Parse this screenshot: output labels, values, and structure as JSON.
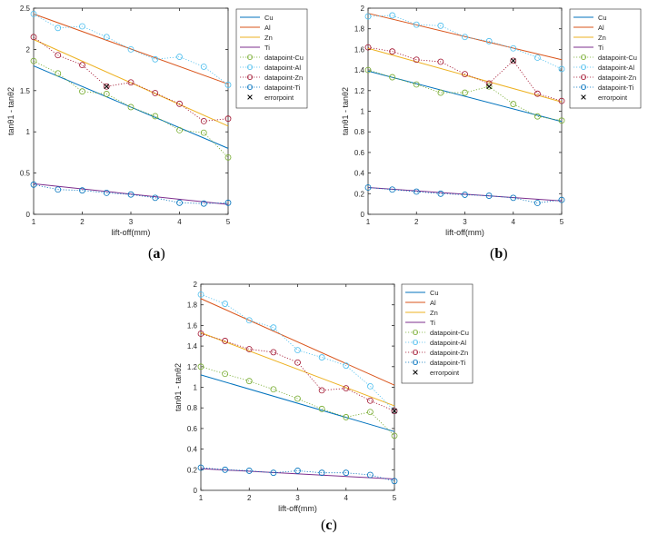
{
  "figure": {
    "captions": [
      {
        "open": "(",
        "letter": "a",
        "close": ")"
      },
      {
        "open": "(",
        "letter": "b",
        "close": ")"
      },
      {
        "open": "(",
        "letter": "c",
        "close": ")"
      }
    ]
  },
  "colors": {
    "Cu": "#0072BD",
    "Al": "#D95319",
    "Zn": "#EDB120",
    "Ti": "#7E2F8E",
    "datapoint-Cu": "#77AC30",
    "datapoint-Al": "#4DBEEE",
    "datapoint-Zn": "#A2142F",
    "datapoint-Ti": "#0072BD",
    "errorpoint": "#000000"
  },
  "chart_data": [
    {
      "type": "line",
      "xlabel": "lift-off(mm)",
      "ylabel": "tanθ1 - tanθ2",
      "xlim": [
        1,
        5
      ],
      "ylim": [
        0,
        2.5
      ],
      "xticks": [
        1,
        2,
        3,
        4,
        5
      ],
      "yticks": [
        0,
        0.5,
        1,
        1.5,
        2,
        2.5
      ],
      "grid": false,
      "legend": "outside-right",
      "legend_entries": [
        "Cu",
        "Al",
        "Zn",
        "Ti",
        "datapoint-Cu",
        "datapoint-Al",
        "datapoint-Zn",
        "datapoint-Ti",
        "errorpoint"
      ],
      "fits": [
        {
          "name": "Cu",
          "x": [
            1,
            5
          ],
          "y": [
            1.8,
            0.8
          ]
        },
        {
          "name": "Al",
          "x": [
            1,
            5
          ],
          "y": [
            2.43,
            1.58
          ]
        },
        {
          "name": "Zn",
          "x": [
            1,
            5
          ],
          "y": [
            2.12,
            1.07
          ]
        },
        {
          "name": "Ti",
          "x": [
            1,
            5
          ],
          "y": [
            0.37,
            0.12
          ]
        }
      ],
      "points": [
        {
          "name": "datapoint-Cu",
          "x": [
            1,
            1.5,
            2,
            2.5,
            3,
            3.5,
            4,
            4.5,
            5
          ],
          "y": [
            1.86,
            1.71,
            1.49,
            1.46,
            1.3,
            1.19,
            1.02,
            0.99,
            0.69
          ]
        },
        {
          "name": "datapoint-Al",
          "x": [
            1,
            1.5,
            2,
            2.5,
            3,
            3.5,
            4,
            4.5,
            5
          ],
          "y": [
            2.43,
            2.26,
            2.28,
            2.15,
            2.0,
            1.88,
            1.91,
            1.79,
            1.57
          ]
        },
        {
          "name": "datapoint-Zn",
          "x": [
            1,
            1.5,
            2,
            2.5,
            3,
            3.5,
            4,
            4.5,
            5
          ],
          "y": [
            2.15,
            1.93,
            1.81,
            1.55,
            1.6,
            1.47,
            1.34,
            1.13,
            1.16
          ]
        },
        {
          "name": "datapoint-Ti",
          "x": [
            1,
            1.5,
            2,
            2.5,
            3,
            3.5,
            4,
            4.5,
            5
          ],
          "y": [
            0.36,
            0.3,
            0.29,
            0.26,
            0.24,
            0.2,
            0.14,
            0.13,
            0.14
          ]
        }
      ],
      "errorpoints": [
        {
          "x": 2.5,
          "y": 1.55
        }
      ]
    },
    {
      "type": "line",
      "xlabel": "lift-off(mm)",
      "ylabel": "tanθ1 - tanθ2",
      "xlim": [
        1,
        5
      ],
      "ylim": [
        0,
        2
      ],
      "xticks": [
        1,
        2,
        3,
        4,
        5
      ],
      "yticks": [
        0,
        0.2,
        0.4,
        0.6,
        0.8,
        1,
        1.2,
        1.4,
        1.6,
        1.8,
        2
      ],
      "grid": false,
      "legend": "outside-right",
      "legend_entries": [
        "Cu",
        "Al",
        "Zn",
        "Ti",
        "datapoint-Cu",
        "datapoint-Al",
        "datapoint-Zn",
        "datapoint-Ti",
        "errorpoint"
      ],
      "fits": [
        {
          "name": "Cu",
          "x": [
            1,
            5
          ],
          "y": [
            1.39,
            0.9
          ]
        },
        {
          "name": "Al",
          "x": [
            1,
            5
          ],
          "y": [
            1.95,
            1.5
          ]
        },
        {
          "name": "Zn",
          "x": [
            1,
            5
          ],
          "y": [
            1.61,
            1.09
          ]
        },
        {
          "name": "Ti",
          "x": [
            1,
            5
          ],
          "y": [
            0.26,
            0.13
          ]
        }
      ],
      "points": [
        {
          "name": "datapoint-Cu",
          "x": [
            1,
            1.5,
            2,
            2.5,
            3,
            3.5,
            4,
            4.5,
            5
          ],
          "y": [
            1.4,
            1.33,
            1.26,
            1.18,
            1.18,
            1.24,
            1.07,
            0.95,
            0.91
          ]
        },
        {
          "name": "datapoint-Al",
          "x": [
            1,
            1.5,
            2,
            2.5,
            3,
            3.5,
            4,
            4.5,
            5
          ],
          "y": [
            1.92,
            1.93,
            1.84,
            1.83,
            1.72,
            1.68,
            1.61,
            1.52,
            1.41
          ]
        },
        {
          "name": "datapoint-Zn",
          "x": [
            1,
            1.5,
            2,
            2.5,
            3,
            3.5,
            4,
            4.5,
            5
          ],
          "y": [
            1.62,
            1.58,
            1.5,
            1.48,
            1.36,
            1.27,
            1.49,
            1.17,
            1.1
          ]
        },
        {
          "name": "datapoint-Ti",
          "x": [
            1,
            1.5,
            2,
            2.5,
            3,
            3.5,
            4,
            4.5,
            5
          ],
          "y": [
            0.26,
            0.24,
            0.22,
            0.2,
            0.19,
            0.18,
            0.16,
            0.11,
            0.14
          ]
        }
      ],
      "errorpoints": [
        {
          "x": 3.5,
          "y": 1.24
        },
        {
          "x": 4,
          "y": 1.49
        }
      ]
    },
    {
      "type": "line",
      "xlabel": "lift-off(mm)",
      "ylabel": "tanθ1 - tanθ2",
      "xlim": [
        1,
        5
      ],
      "ylim": [
        0,
        2
      ],
      "xticks": [
        1,
        2,
        3,
        4,
        5
      ],
      "yticks": [
        0,
        0.2,
        0.4,
        0.6,
        0.8,
        1,
        1.2,
        1.4,
        1.6,
        1.8,
        2
      ],
      "grid": false,
      "legend": "outside-right",
      "legend_entries": [
        "Cu",
        "Al",
        "Zn",
        "Ti",
        "datapoint-Cu",
        "datapoint-Al",
        "datapoint-Zn",
        "datapoint-Ti",
        "errorpoint"
      ],
      "fits": [
        {
          "name": "Cu",
          "x": [
            1,
            5
          ],
          "y": [
            1.12,
            0.57
          ]
        },
        {
          "name": "Al",
          "x": [
            1,
            5
          ],
          "y": [
            1.86,
            1.02
          ]
        },
        {
          "name": "Zn",
          "x": [
            1,
            5
          ],
          "y": [
            1.53,
            0.82
          ]
        },
        {
          "name": "Ti",
          "x": [
            1,
            5
          ],
          "y": [
            0.21,
            0.11
          ]
        }
      ],
      "points": [
        {
          "name": "datapoint-Cu",
          "x": [
            1,
            1.5,
            2,
            2.5,
            3,
            3.5,
            4,
            4.5,
            5
          ],
          "y": [
            1.2,
            1.13,
            1.06,
            0.98,
            0.89,
            0.79,
            0.71,
            0.76,
            0.53
          ]
        },
        {
          "name": "datapoint-Al",
          "x": [
            1,
            1.5,
            2,
            2.5,
            3,
            3.5,
            4,
            4.5,
            5
          ],
          "y": [
            1.9,
            1.81,
            1.65,
            1.58,
            1.36,
            1.29,
            1.21,
            1.01,
            0.77
          ]
        },
        {
          "name": "datapoint-Zn",
          "x": [
            1,
            1.5,
            2,
            2.5,
            3,
            3.5,
            4,
            4.5,
            5
          ],
          "y": [
            1.52,
            1.45,
            1.37,
            1.34,
            1.24,
            0.97,
            0.99,
            0.87,
            0.77
          ]
        },
        {
          "name": "datapoint-Ti",
          "x": [
            1,
            1.5,
            2,
            2.5,
            3,
            3.5,
            4,
            4.5,
            5
          ],
          "y": [
            0.22,
            0.2,
            0.19,
            0.17,
            0.19,
            0.17,
            0.17,
            0.15,
            0.09
          ]
        }
      ],
      "errorpoints": [
        {
          "x": 5,
          "y": 0.77
        }
      ]
    }
  ]
}
